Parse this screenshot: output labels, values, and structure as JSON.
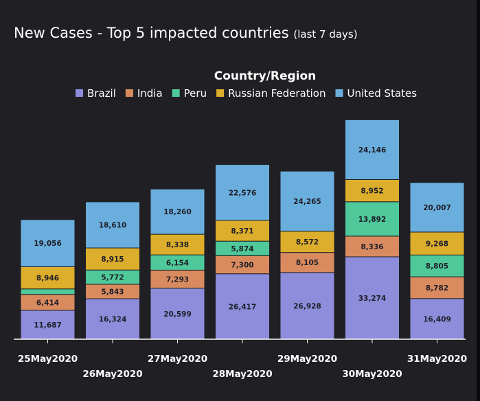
{
  "title": "New Cases - Top 5 impacted countries",
  "title_suffix": "(last 7 days)",
  "chart_data": {
    "type": "bar",
    "stacked": true,
    "legend_title": "Country/Region",
    "legend_position": "top",
    "categories": [
      "25May2020",
      "26May2020",
      "27May2020",
      "28May2020",
      "29May2020",
      "30May2020",
      "31May2020"
    ],
    "series": [
      {
        "name": "Brazil",
        "color": "#8d8ddc",
        "values": [
          11687,
          16324,
          20599,
          26417,
          26928,
          33274,
          16409
        ]
      },
      {
        "name": "India",
        "color": "#d98b5f",
        "values": [
          6414,
          5843,
          7293,
          7300,
          8105,
          8336,
          8782
        ]
      },
      {
        "name": "Peru",
        "color": "#4fc99a",
        "values": [
          2200,
          5772,
          6154,
          5874,
          0,
          13892,
          8805
        ]
      },
      {
        "name": "Russian Federation",
        "color": "#dcae2c",
        "values": [
          8946,
          8915,
          8338,
          8371,
          8572,
          8952,
          9268
        ]
      },
      {
        "name": "United States",
        "color": "#6aaede",
        "values": [
          19056,
          18610,
          18260,
          22576,
          24265,
          24146,
          20007
        ]
      }
    ],
    "labels_hidden_below": 2500,
    "grid": false
  }
}
